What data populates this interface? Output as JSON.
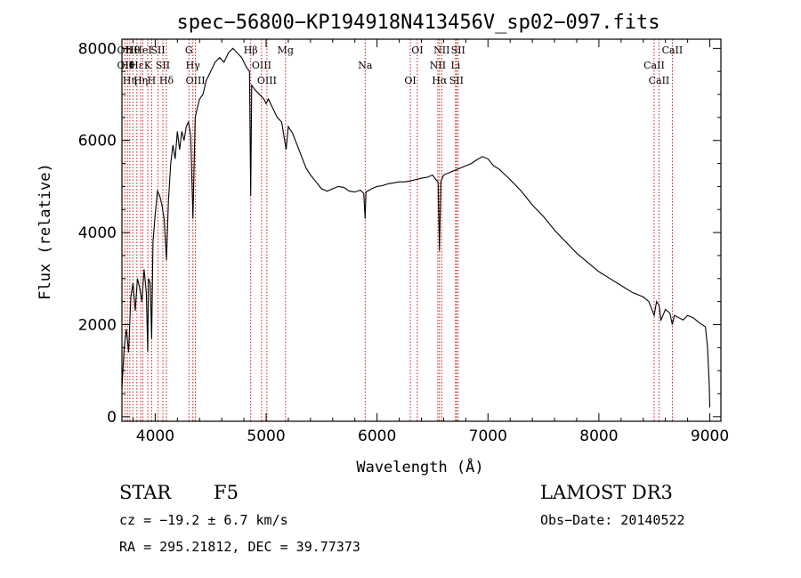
{
  "chart_data": {
    "type": "line",
    "title": "spec−56800−KP194918N413456V_sp02−097.fits",
    "xlabel": "Wavelength (Å)",
    "ylabel": "Flux (relative)",
    "xlim": [
      3700,
      9100
    ],
    "ylim": [
      -100,
      8200
    ],
    "xticks": [
      4000,
      5000,
      6000,
      7000,
      8000,
      9000
    ],
    "xtick_labels": [
      "4000",
      "5000",
      "6000",
      "7000",
      "8000",
      "9000"
    ],
    "yticks": [
      0,
      2000,
      4000,
      6000,
      8000
    ],
    "ytick_labels": [
      "0",
      "2000",
      "4000",
      "6000",
      "8000"
    ],
    "series": [
      {
        "name": "spectrum",
        "x": [
          3700,
          3720,
          3740,
          3760,
          3780,
          3800,
          3820,
          3840,
          3860,
          3880,
          3900,
          3920,
          3933,
          3940,
          3955,
          3968,
          3980,
          4000,
          4020,
          4040,
          4060,
          4080,
          4101,
          4120,
          4140,
          4160,
          4180,
          4200,
          4220,
          4240,
          4260,
          4280,
          4300,
          4320,
          4340,
          4360,
          4380,
          4400,
          4430,
          4460,
          4500,
          4540,
          4580,
          4620,
          4660,
          4700,
          4740,
          4780,
          4820,
          4850,
          4861,
          4870,
          4900,
          4940,
          4980,
          5000,
          5020,
          5060,
          5100,
          5140,
          5180,
          5200,
          5240,
          5280,
          5320,
          5360,
          5400,
          5450,
          5500,
          5550,
          5600,
          5650,
          5700,
          5750,
          5800,
          5850,
          5880,
          5893,
          5900,
          5950,
          6000,
          6050,
          6100,
          6150,
          6200,
          6250,
          6300,
          6350,
          6400,
          6450,
          6500,
          6530,
          6550,
          6563,
          6575,
          6600,
          6650,
          6700,
          6750,
          6800,
          6850,
          6900,
          6950,
          7000,
          7050,
          7100,
          7200,
          7300,
          7400,
          7500,
          7600,
          7700,
          7800,
          7900,
          8000,
          8100,
          8200,
          8300,
          8400,
          8450,
          8498,
          8520,
          8542,
          8560,
          8600,
          8640,
          8662,
          8680,
          8720,
          8760,
          8800,
          8850,
          8900,
          8960,
          8980,
          8995,
          9000
        ],
        "values": [
          600,
          1500,
          1900,
          1400,
          2600,
          2900,
          2300,
          3000,
          2800,
          2500,
          3200,
          2700,
          1400,
          3000,
          2900,
          1700,
          3800,
          4400,
          4900,
          4800,
          4600,
          4300,
          3400,
          4700,
          5500,
          5900,
          5600,
          6200,
          5800,
          6200,
          6000,
          6300,
          6400,
          6100,
          4300,
          6500,
          6700,
          6900,
          7000,
          7300,
          7500,
          7700,
          7800,
          7700,
          7900,
          8000,
          7900,
          7800,
          7600,
          7500,
          4800,
          7200,
          7100,
          7000,
          6900,
          6800,
          6900,
          6700,
          6500,
          6400,
          5800,
          6300,
          6150,
          5900,
          5650,
          5400,
          5250,
          5100,
          4950,
          4900,
          4950,
          5000,
          4980,
          4900,
          4880,
          4920,
          4850,
          4300,
          4880,
          4950,
          5000,
          5020,
          5060,
          5080,
          5100,
          5100,
          5120,
          5150,
          5180,
          5200,
          5250,
          5150,
          5100,
          3600,
          5100,
          5250,
          5300,
          5350,
          5400,
          5450,
          5500,
          5580,
          5650,
          5600,
          5450,
          5380,
          5150,
          4900,
          4600,
          4350,
          4050,
          3800,
          3550,
          3350,
          3150,
          3000,
          2850,
          2700,
          2600,
          2500,
          2200,
          2500,
          2420,
          2100,
          2330,
          2250,
          2000,
          2200,
          2150,
          2100,
          2200,
          2150,
          2050,
          1950,
          1500,
          700,
          200
        ]
      }
    ],
    "line_markers": [
      {
        "x": 3727,
        "labels": [
          "OII",
          "OII"
        ]
      },
      {
        "x": 3750,
        "labels": [
          "Hθ"
        ]
      },
      {
        "x": 3771,
        "labels": [
          "Hη"
        ]
      },
      {
        "x": 3798,
        "labels": [
          "Hθ"
        ]
      },
      {
        "x": 3835,
        "labels": [
          "Hε"
        ]
      },
      {
        "x": 3869,
        "labels": [
          "Hη"
        ]
      },
      {
        "x": 3889,
        "labels": [
          "HeI"
        ]
      },
      {
        "x": 3933,
        "labels": [
          "K"
        ]
      },
      {
        "x": 3968,
        "labels": [
          "H"
        ]
      },
      {
        "x": 4026,
        "labels": [
          "SII"
        ]
      },
      {
        "x": 4069,
        "labels": [
          "SII"
        ]
      },
      {
        "x": 4101,
        "labels": [
          "Hδ"
        ]
      },
      {
        "x": 4304,
        "labels": [
          "G"
        ]
      },
      {
        "x": 4340,
        "labels": [
          "Hγ"
        ]
      },
      {
        "x": 4363,
        "labels": [
          "OIII"
        ]
      },
      {
        "x": 4861,
        "labels": [
          "Hβ"
        ]
      },
      {
        "x": 4959,
        "labels": [
          "OIII"
        ]
      },
      {
        "x": 5007,
        "labels": [
          "OIII"
        ]
      },
      {
        "x": 5175,
        "labels": [
          "Mg"
        ]
      },
      {
        "x": 5893,
        "labels": [
          "Na"
        ]
      },
      {
        "x": 6300,
        "labels": [
          "OI"
        ]
      },
      {
        "x": 6363,
        "labels": [
          "OI"
        ]
      },
      {
        "x": 6548,
        "labels": [
          "NII"
        ]
      },
      {
        "x": 6563,
        "labels": [
          "Hα"
        ]
      },
      {
        "x": 6583,
        "labels": [
          "NII"
        ]
      },
      {
        "x": 6708,
        "labels": [
          "Li"
        ]
      },
      {
        "x": 6716,
        "labels": [
          "SII"
        ]
      },
      {
        "x": 6731,
        "labels": [
          "SII"
        ]
      },
      {
        "x": 8498,
        "labels": [
          "CaII"
        ]
      },
      {
        "x": 8542,
        "labels": [
          "CaII"
        ]
      },
      {
        "x": 8662,
        "labels": [
          "CaII"
        ]
      }
    ]
  },
  "info": {
    "object_class": "STAR",
    "subclass": "F5",
    "cz": "cz = −19.2 ± 6.7 km/s",
    "coords": "RA = 295.21812, DEC =  39.77373",
    "survey": "LAMOST DR3",
    "obs_date": "Obs−Date: 20140522"
  },
  "colors": {
    "axis": "#000000",
    "spectrum": "#000000",
    "marker": "#cc0000"
  }
}
